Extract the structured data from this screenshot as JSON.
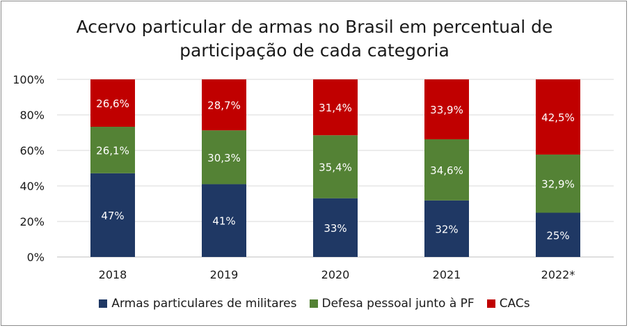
{
  "chart_data": {
    "type": "bar",
    "stacked": true,
    "percent": true,
    "title_lines": [
      "Acervo particular de armas no Brasil em percentual de",
      "participação de cada categoria"
    ],
    "categories": [
      "2018",
      "2019",
      "2020",
      "2021",
      "2022*"
    ],
    "series": [
      {
        "name": "Armas particulares de militares",
        "color": "#1f3864",
        "values": [
          47,
          41,
          33,
          32,
          25
        ],
        "labels": [
          "47%",
          "41%",
          "33%",
          "32%",
          "25%"
        ]
      },
      {
        "name": "Defesa pessoal junto à PF",
        "color": "#548235",
        "values": [
          26.1,
          30.3,
          35.4,
          34.6,
          32.9
        ],
        "labels": [
          "26,1%",
          "30,3%",
          "35,4%",
          "34,6%",
          "32,9%"
        ]
      },
      {
        "name": "CACs",
        "color": "#c00000",
        "values": [
          26.6,
          28.7,
          31.4,
          33.9,
          42.5
        ],
        "labels": [
          "26,6%",
          "28,7%",
          "31,4%",
          "33,9%",
          "42,5%"
        ]
      }
    ],
    "ylim": [
      0,
      100
    ],
    "yticks": [
      "0%",
      "20%",
      "40%",
      "60%",
      "80%",
      "100%"
    ],
    "grid": true,
    "legend_position": "bottom"
  }
}
